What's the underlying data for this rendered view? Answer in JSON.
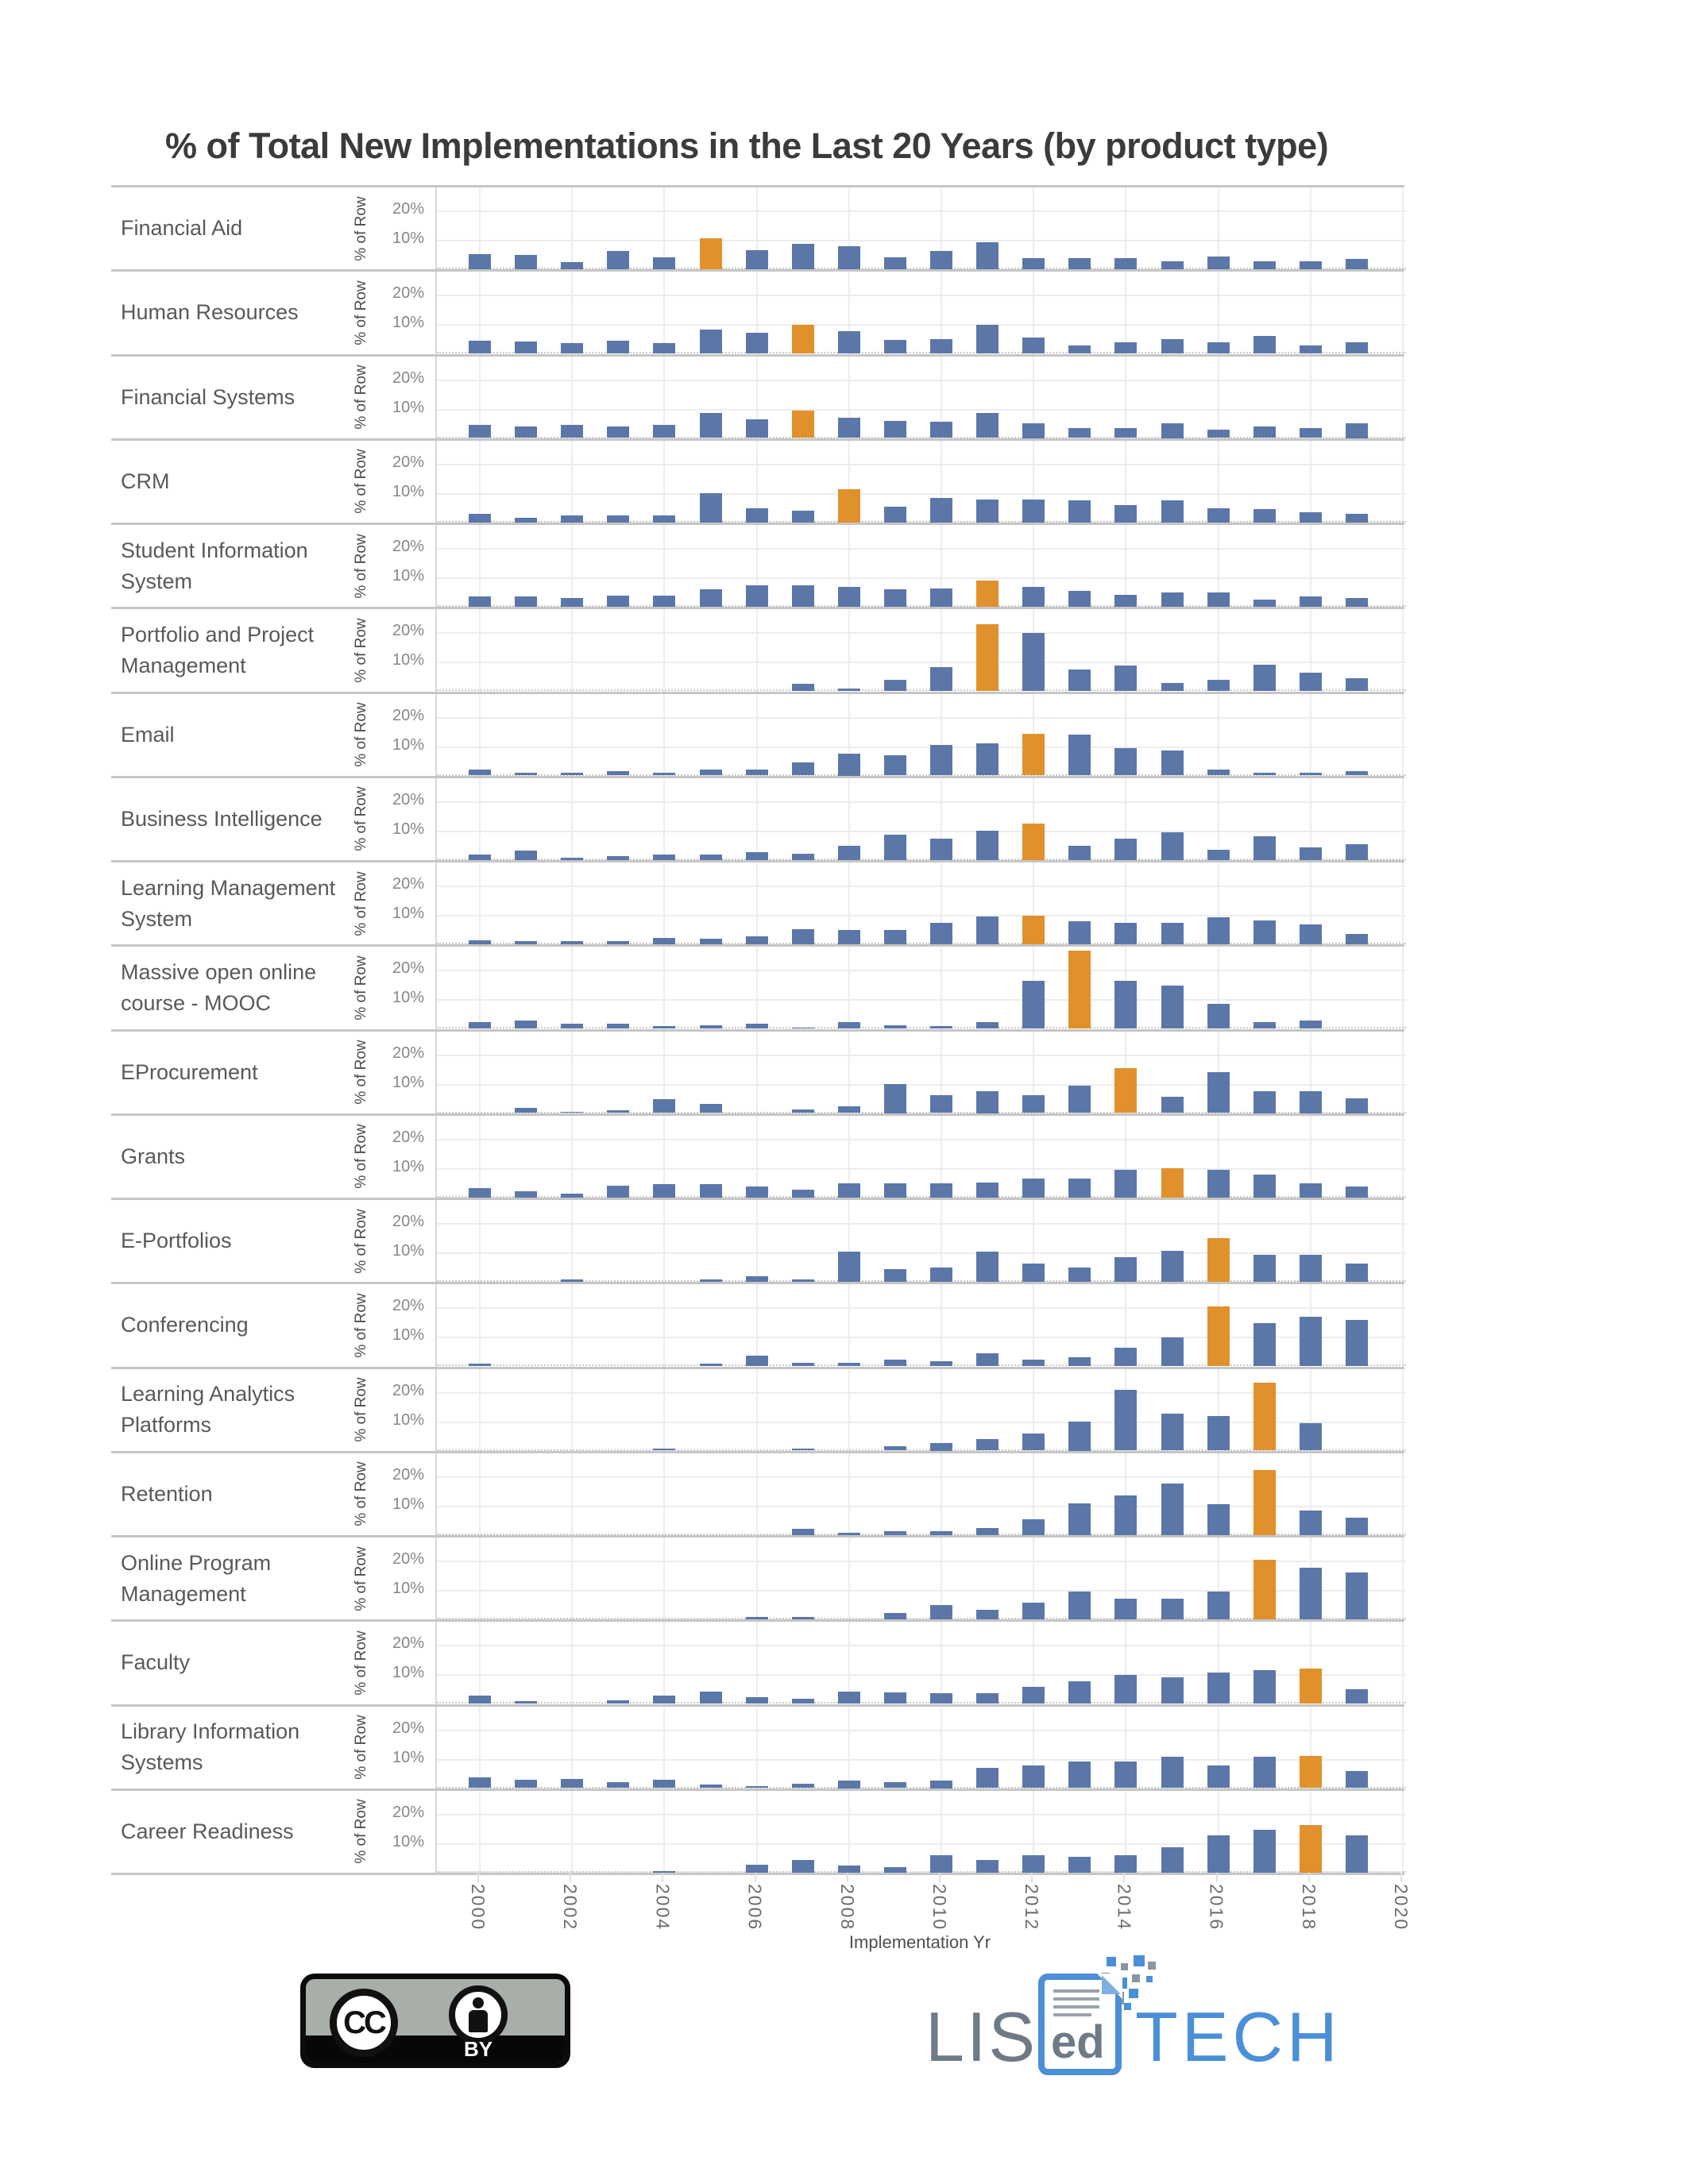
{
  "page": {
    "title": "% of Total New Implementations in the Last 20 Years (by product type)"
  },
  "chart_data": {
    "type": "bar",
    "title": "% of Total New Implementations in the Last 20 Years (by product type)",
    "xlabel": "Implementation Yr",
    "ylabel": "% of Row",
    "yticks": [
      "20%",
      "10%"
    ],
    "ylim": [
      0,
      28
    ],
    "grid": true,
    "legend": "none",
    "years": [
      2000,
      2001,
      2002,
      2003,
      2004,
      2005,
      2006,
      2007,
      2008,
      2009,
      2010,
      2011,
      2012,
      2013,
      2014,
      2015,
      2016,
      2017,
      2018,
      2019,
      2020
    ],
    "x_tick_years": [
      2000,
      2002,
      2004,
      2006,
      2008,
      2010,
      2012,
      2014,
      2016,
      2018,
      2020
    ],
    "colors": {
      "bar": "#5b77a8",
      "highlight": "#e0912c"
    },
    "highlight_note": "one orange bar per row marks that product's peak implementation year",
    "rows": [
      {
        "label": "Financial Aid",
        "highlight_year": 2005,
        "values": [
          5.3,
          5,
          2.5,
          6.3,
          4,
          10.6,
          6.6,
          8.9,
          7.9,
          4,
          6.4,
          9.2,
          3.9,
          3.7,
          3.8,
          2.7,
          4.5,
          2.7,
          2.7,
          3.5,
          0
        ]
      },
      {
        "label": "Human Resources",
        "highlight_year": 2007,
        "values": [
          4.5,
          4.3,
          3.6,
          4.5,
          3.6,
          8.4,
          7.2,
          9.8,
          7.8,
          4.6,
          5,
          9.8,
          5.5,
          2.9,
          3.8,
          5,
          3.8,
          6,
          2.9,
          3.8,
          0
        ]
      },
      {
        "label": "Financial Systems",
        "highlight_year": 2007,
        "values": [
          4.5,
          4,
          4.5,
          4,
          4.5,
          8.5,
          6.5,
          9.5,
          7,
          6,
          5.5,
          8.5,
          5,
          3.5,
          3.5,
          5,
          3,
          4,
          3.5,
          5,
          0
        ]
      },
      {
        "label": "CRM",
        "highlight_year": 2008,
        "values": [
          3,
          1.5,
          2.5,
          2.5,
          2.5,
          10,
          5,
          4,
          11.5,
          5.5,
          8.5,
          8,
          8,
          7.5,
          6,
          7.5,
          5,
          4.5,
          3.5,
          3,
          0
        ]
      },
      {
        "label": "Student Information\nSystem",
        "highlight_year": 2011,
        "values": [
          3.5,
          3.5,
          3,
          3.8,
          3.8,
          6,
          7.5,
          7.5,
          6.8,
          6,
          6.2,
          9,
          6.8,
          5.5,
          4,
          4.8,
          4.8,
          2.5,
          3.5,
          3,
          0
        ]
      },
      {
        "label": "Portfolio and Project\nManagement",
        "highlight_year": 2011,
        "values": [
          0,
          0,
          0,
          0,
          0,
          0,
          0,
          2.5,
          1,
          4,
          8.2,
          23,
          20,
          7.5,
          8.8,
          2.8,
          4,
          9.2,
          6.5,
          4.5,
          0
        ]
      },
      {
        "label": "Email",
        "highlight_year": 2012,
        "values": [
          2,
          1,
          1,
          1.5,
          1,
          2,
          2,
          4.5,
          7.5,
          7,
          10.5,
          11,
          14.5,
          14,
          9.5,
          8.5,
          2,
          1,
          1,
          1.5,
          0
        ]
      },
      {
        "label": "Business Intelligence",
        "highlight_year": 2012,
        "values": [
          1.8,
          3.2,
          0.7,
          1.2,
          1.8,
          1.8,
          2.8,
          2,
          5,
          8.8,
          7.2,
          10,
          12.5,
          4.8,
          7.2,
          9.5,
          3.5,
          8.2,
          4.2,
          5.5,
          0
        ]
      },
      {
        "label": "Learning Management\nSystem",
        "highlight_year": 2012,
        "values": [
          1.5,
          1,
          1,
          1,
          2.2,
          1.8,
          2.8,
          5.2,
          4.8,
          4.8,
          7.5,
          9.5,
          10,
          8,
          7.5,
          7.5,
          9.2,
          8.2,
          6.8,
          3.5,
          0
        ]
      },
      {
        "label": "Massive open online\ncourse - MOOC",
        "highlight_year": 2013,
        "values": [
          2.2,
          2.8,
          1.8,
          1.8,
          1,
          1.2,
          1.8,
          0.4,
          2.2,
          1.2,
          1,
          2.2,
          16.5,
          27,
          16.5,
          15,
          8.5,
          2.2,
          2.8,
          0,
          0
        ]
      },
      {
        "label": "EProcurement",
        "highlight_year": 2014,
        "values": [
          0,
          1.8,
          0.4,
          1,
          4.8,
          3.2,
          0,
          1.2,
          2.2,
          10,
          6.2,
          7.5,
          6.2,
          9.5,
          15.5,
          5.5,
          14,
          7.5,
          7.5,
          5,
          0
        ]
      },
      {
        "label": "Grants",
        "highlight_year": 2015,
        "values": [
          3.2,
          2,
          1.2,
          4,
          4.5,
          4.5,
          3.8,
          2.8,
          5,
          5,
          5,
          5.2,
          6.5,
          6.5,
          9.5,
          10,
          9.5,
          8,
          5,
          3.8,
          0
        ]
      },
      {
        "label": "E-Portfolios",
        "highlight_year": 2016,
        "values": [
          0,
          0,
          0.8,
          0,
          0,
          0.8,
          2,
          0.8,
          10.5,
          4.5,
          5,
          10.5,
          6.2,
          5,
          8.5,
          10.8,
          15,
          9.2,
          9.2,
          6.2,
          0
        ]
      },
      {
        "label": "Conferencing",
        "highlight_year": 2016,
        "values": [
          0.8,
          0,
          0,
          0,
          0,
          0.8,
          3.5,
          1.2,
          1.2,
          2.2,
          1.8,
          4.5,
          2.2,
          3.2,
          6.5,
          9.8,
          20.5,
          14.8,
          17,
          16,
          0
        ]
      },
      {
        "label": "Learning Analytics\nPlatforms",
        "highlight_year": 2017,
        "values": [
          0,
          0,
          0,
          0,
          0.7,
          0,
          0,
          0.7,
          0,
          1.5,
          2.5,
          4,
          6,
          10,
          21,
          12.8,
          11.8,
          23.5,
          9.5,
          0,
          0
        ]
      },
      {
        "label": "Retention",
        "highlight_year": 2017,
        "values": [
          0,
          0,
          0,
          0,
          0,
          0,
          0,
          2,
          0.8,
          1.2,
          1.2,
          2.5,
          5.5,
          10.8,
          13.5,
          17.8,
          10.5,
          22.5,
          8.5,
          6,
          0
        ]
      },
      {
        "label": "Online Program\nManagement",
        "highlight_year": 2017,
        "values": [
          0,
          0,
          0,
          0,
          0,
          0,
          0.7,
          0.7,
          0,
          2.2,
          5,
          3.2,
          5.8,
          9.5,
          7.2,
          7,
          9.5,
          20.5,
          17.8,
          16.2,
          0
        ]
      },
      {
        "label": "Faculty",
        "highlight_year": 2018,
        "values": [
          2.8,
          0.8,
          0,
          1.2,
          2.8,
          4.2,
          2.2,
          1.8,
          4.2,
          3.8,
          3.5,
          3.5,
          5.8,
          7.8,
          9.8,
          9.2,
          10.8,
          11.5,
          12.2,
          5,
          0
        ]
      },
      {
        "label": "Library Information\nSystems",
        "highlight_year": 2018,
        "values": [
          3.8,
          2.8,
          3.2,
          2,
          3,
          1.2,
          0.8,
          1.5,
          2.5,
          2,
          2.5,
          7,
          7.8,
          9.2,
          9.2,
          10.8,
          7.8,
          10.8,
          11.2,
          6,
          0
        ]
      },
      {
        "label": "Career Readiness",
        "highlight_year": 2018,
        "values": [
          0,
          0,
          0,
          0,
          0.5,
          0,
          2.8,
          4.2,
          2.5,
          1.8,
          6,
          4.2,
          6,
          5.5,
          6,
          8.8,
          12.8,
          14.8,
          16.5,
          12.8,
          0
        ]
      }
    ]
  },
  "footer": {
    "license": {
      "cc": "CC",
      "by": "BY"
    },
    "logo": {
      "list": "LIST",
      "ed": "ed",
      "tech": "TECH"
    }
  }
}
